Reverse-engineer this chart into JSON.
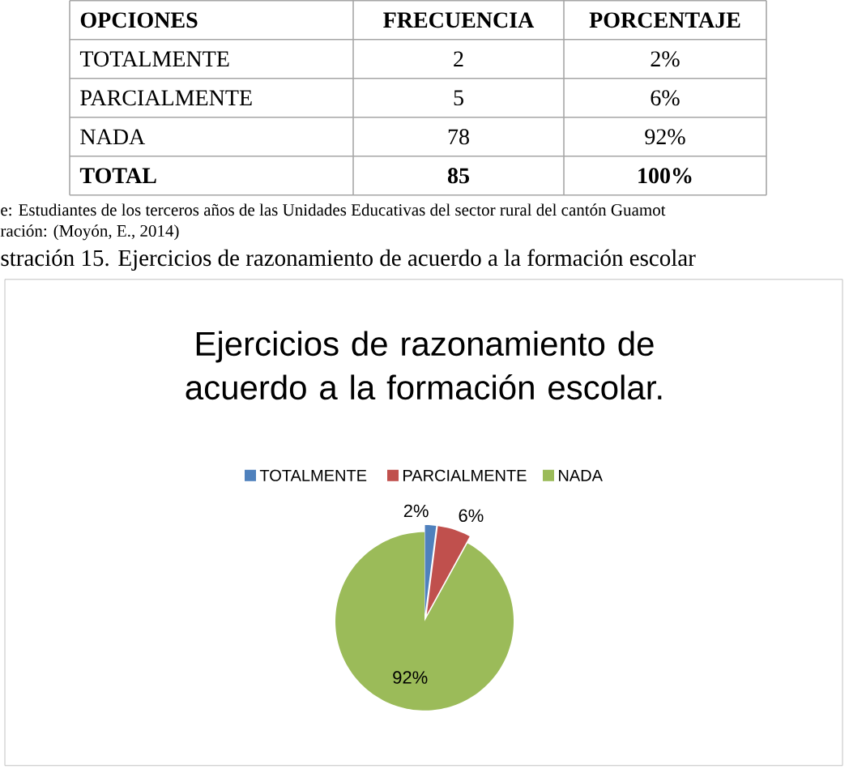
{
  "chart_data": {
    "type": "pie",
    "title": "Ejercicios de razonamiento de acuerdo a la formación escolar.",
    "categories": [
      "TOTALMENTE",
      "PARCIALMENTE",
      "NADA"
    ],
    "values": [
      2,
      6,
      92
    ],
    "colors": [
      "#4f81bd",
      "#c0504d",
      "#9bbb59"
    ],
    "value_labels": [
      "2%",
      "6%",
      "92%"
    ],
    "legend": "top",
    "annotations": [
      "OPCIONES",
      "FRECUENCIA",
      "PORCENTAJE",
      "TOTALMENTE",
      "2",
      "2%",
      "PARCIALMENTE",
      "5",
      "6%",
      "NADA",
      "78",
      "92%",
      "TOTAL",
      "85",
      "100%",
      "e: Estudiantes  de los terceros años de las Unidades Educativas del sector rural del cantón Guamot",
      "ración: (Moyón, E., 2014)",
      "stración 15. Ejercicios de razonamiento de acuerdo a la formación escolar"
    ]
  }
}
